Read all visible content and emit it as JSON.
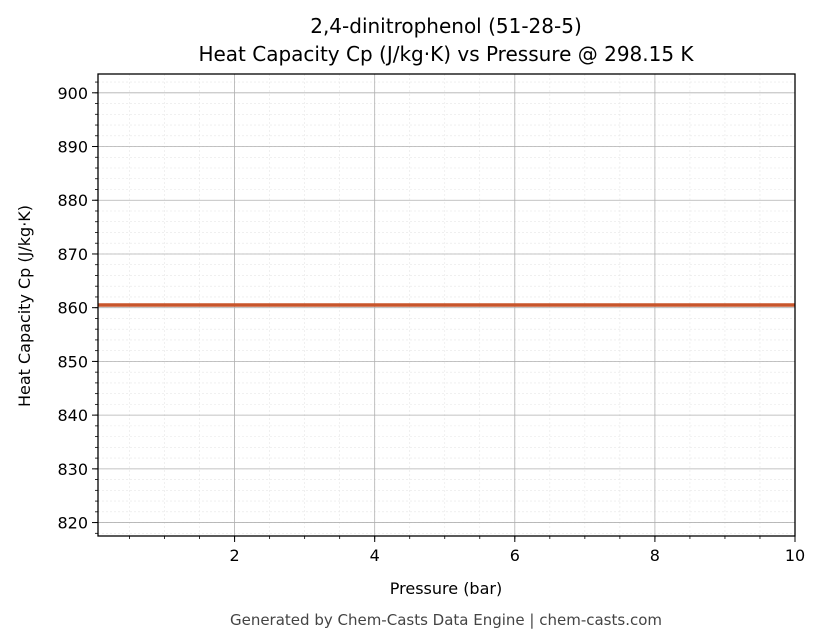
{
  "chart_data": {
    "type": "line",
    "title": "2,4-dinitrophenol (51-28-5)",
    "subtitle": "Heat Capacity Cp (J/kg·K) vs Pressure @ 298.15 K",
    "xlabel": "Pressure (bar)",
    "ylabel": "Heat Capacity Cp (J/kg·K)",
    "xlim": [
      0.05,
      10
    ],
    "ylim": [
      817.5,
      903.5
    ],
    "xticks": [
      2,
      4,
      6,
      8,
      10
    ],
    "yticks": [
      820,
      830,
      840,
      850,
      860,
      870,
      880,
      890,
      900
    ],
    "grid": true,
    "minor_grid": true,
    "series": [
      {
        "color": "#c8552b",
        "x": [
          0.05,
          1,
          2,
          3,
          4,
          5,
          6,
          7,
          8,
          9,
          10
        ],
        "y": [
          860.5,
          860.5,
          860.5,
          860.5,
          860.5,
          860.5,
          860.5,
          860.5,
          860.5,
          860.5,
          860.5
        ]
      }
    ]
  },
  "footer": "Generated by Chem-Casts Data Engine | chem-casts.com"
}
